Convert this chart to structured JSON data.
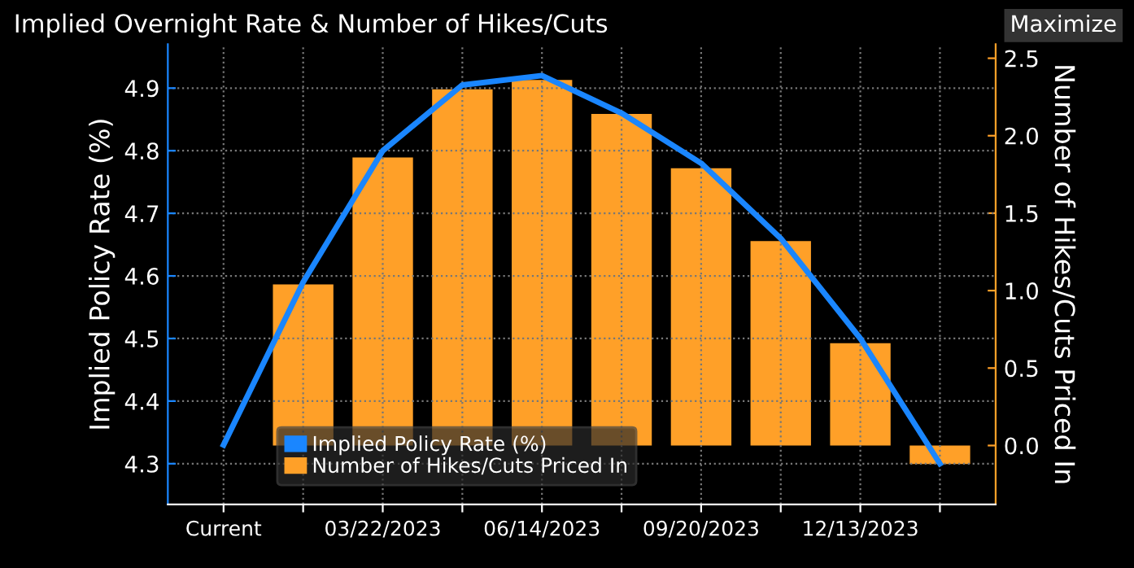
{
  "chart_data": {
    "type": "bar",
    "title": "Implied Overnight Rate & Number of Hikes/Cuts",
    "annotations": [
      "Maximize"
    ],
    "categories": [
      "Current",
      null,
      "03/22/2023",
      null,
      "06/14/2023",
      null,
      "09/20/2023",
      null,
      "12/13/2023",
      null
    ],
    "ylabel": "Implied Policy Rate (%)",
    "y2label": "Number of Hikes/Cuts Priced In",
    "series": [
      {
        "name": "Implied Policy Rate (%)",
        "type": "line",
        "color": "#1a86ff",
        "values": [
          4.33,
          4.59,
          4.8,
          4.905,
          4.92,
          4.86,
          4.78,
          4.66,
          4.5,
          4.3
        ]
      },
      {
        "name": "Number of Hikes/Cuts Priced In",
        "axis": "y2",
        "color": "#ffa028",
        "values": [
          0.0,
          1.04,
          1.86,
          2.3,
          2.36,
          2.14,
          1.79,
          1.32,
          0.66,
          -0.12
        ]
      }
    ],
    "ylim": [
      4.235,
      4.97
    ],
    "yticks": [
      4.3,
      4.4,
      4.5,
      4.6,
      4.7,
      4.8,
      4.9
    ],
    "y2lim": [
      -0.38,
      2.59
    ],
    "y2ticks": [
      {
        "value": 0,
        "label": "0.0"
      },
      0.5,
      {
        "value": 1,
        "label": "1.0"
      },
      1.5,
      {
        "value": 2,
        "label": "2.0"
      },
      2.5
    ],
    "grid": true,
    "legend": "bottom left",
    "marker": "none",
    "line_style": "solid"
  }
}
